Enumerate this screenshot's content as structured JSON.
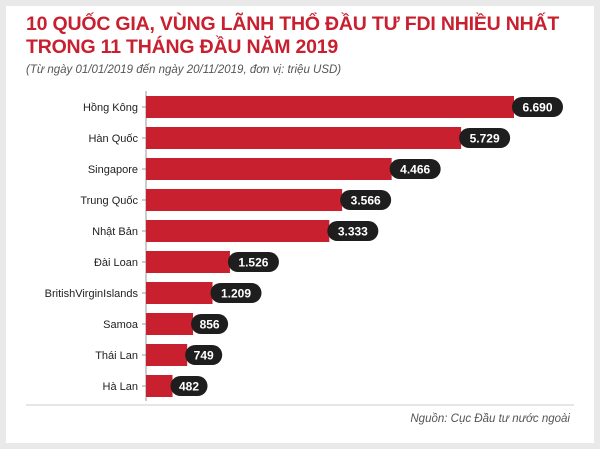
{
  "header": {
    "title_line1": "10 QUỐC GIA, VÙNG LÃNH THỔ ĐẦU TƯ FDI NHIỀU NHẤT",
    "title_line2": "TRONG 11 THÁNG ĐẦU NĂM 2019",
    "subtitle": "(Từ ngày 01/01/2019 đến ngày 20/11/2019, đơn vị: triệu USD)"
  },
  "footer": {
    "source": "Nguồn: Cục Đầu tư nước ngoài"
  },
  "colors": {
    "accent": "#c8202f",
    "bar": "#c8202f",
    "label_bg": "#1e1e1e",
    "label_text": "#ffffff",
    "axis": "#999999"
  },
  "chart_data": {
    "type": "bar",
    "orientation": "horizontal",
    "title": "10 QUỐC GIA, VÙNG LÃNH THỔ ĐẦU TƯ FDI NHIỀU NHẤT TRONG 11 THÁNG ĐẦU NĂM 2019",
    "subtitle": "(Từ ngày 01/01/2019 đến ngày 20/11/2019, đơn vị: triệu USD)",
    "categories": [
      "Hồng Kông",
      "Hàn Quốc",
      "Singapore",
      "Trung Quốc",
      "Nhật Bản",
      "Đài Loan",
      "BritishVirginIslands",
      "Samoa",
      "Thái Lan",
      "Hà Lan"
    ],
    "values": [
      6690,
      5729,
      4466,
      3566,
      3333,
      1526,
      1209,
      856,
      749,
      482
    ],
    "value_labels": [
      "6.690",
      "5.729",
      "4.466",
      "3.566",
      "3.333",
      "1.526",
      "1.209",
      "856",
      "749",
      "482"
    ],
    "xlim": [
      0,
      6690
    ],
    "grid": false,
    "legend": "none"
  }
}
